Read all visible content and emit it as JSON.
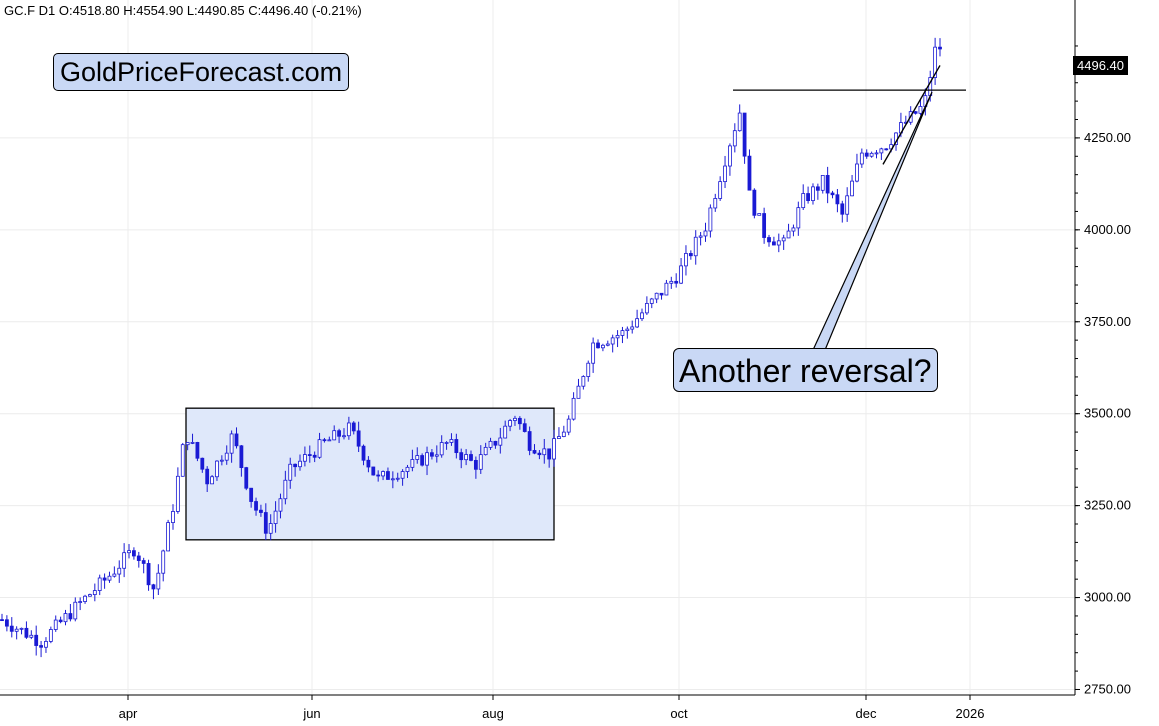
{
  "header": {
    "text": "GC.F  D1  O:4518.80  H:4554.90  L:4490.85  C:4496.40  (-0.21%)"
  },
  "annotations": {
    "logo_text": "GoldPriceForecast.com",
    "callout_text": "Another reversal?"
  },
  "last_price": "4496.40",
  "colors": {
    "candle": "#1a1ad4",
    "box_fill": "#dfe8fa",
    "callout_fill": "#c9d8f5",
    "grid": "#ececec"
  },
  "chart_data": {
    "type": "candlestick",
    "symbol": "GC.F",
    "timeframe": "D1",
    "ohlc_last": {
      "open": 4518.8,
      "high": 4554.9,
      "low": 4490.85,
      "close": 4496.4,
      "change_pct": -0.21
    },
    "y_ticks": [
      "2750.00",
      "3000.00",
      "3250.00",
      "3500.00",
      "3750.00",
      "4000.00",
      "4250.00"
    ],
    "y_range": [
      2735,
      4625
    ],
    "x_labels": [
      "apr",
      "jun",
      "aug",
      "oct",
      "dec",
      "2026"
    ],
    "price_path": [
      {
        "day": 0,
        "price": 2940
      },
      {
        "day": 20,
        "price": 2880
      },
      {
        "day": 40,
        "price": 2985
      },
      {
        "day": 55,
        "price": 3060
      },
      {
        "day": 68,
        "price": 3135
      },
      {
        "day": 78,
        "price": 3020
      },
      {
        "day": 88,
        "price": 3260
      },
      {
        "day": 94,
        "price": 3450
      },
      {
        "day": 105,
        "price": 3320
      },
      {
        "day": 118,
        "price": 3440
      },
      {
        "day": 128,
        "price": 3260
      },
      {
        "day": 136,
        "price": 3180
      },
      {
        "day": 148,
        "price": 3350
      },
      {
        "day": 165,
        "price": 3420
      },
      {
        "day": 178,
        "price": 3460
      },
      {
        "day": 192,
        "price": 3320
      },
      {
        "day": 210,
        "price": 3360
      },
      {
        "day": 228,
        "price": 3420
      },
      {
        "day": 242,
        "price": 3360
      },
      {
        "day": 255,
        "price": 3440
      },
      {
        "day": 262,
        "price": 3500
      },
      {
        "day": 270,
        "price": 3420
      },
      {
        "day": 280,
        "price": 3390
      },
      {
        "day": 290,
        "price": 3480
      },
      {
        "day": 302,
        "price": 3690
      },
      {
        "day": 318,
        "price": 3720
      },
      {
        "day": 332,
        "price": 3800
      },
      {
        "day": 346,
        "price": 3880
      },
      {
        "day": 360,
        "price": 4010
      },
      {
        "day": 372,
        "price": 4230
      },
      {
        "day": 378,
        "price": 4330
      },
      {
        "day": 382,
        "price": 4100
      },
      {
        "day": 390,
        "price": 3990
      },
      {
        "day": 400,
        "price": 3960
      },
      {
        "day": 410,
        "price": 4080
      },
      {
        "day": 420,
        "price": 4130
      },
      {
        "day": 430,
        "price": 4040
      },
      {
        "day": 440,
        "price": 4210
      },
      {
        "day": 452,
        "price": 4230
      },
      {
        "day": 462,
        "price": 4290
      },
      {
        "day": 472,
        "price": 4340
      },
      {
        "day": 478,
        "price": 4500
      },
      {
        "day": 480,
        "price": 4496
      }
    ],
    "consolidation_box": {
      "price_low": 3157,
      "price_high": 3515
    },
    "resistance_line": {
      "price": 4380
    },
    "annotations": [
      "GoldPriceForecast.com",
      "Another reversal?"
    ]
  }
}
